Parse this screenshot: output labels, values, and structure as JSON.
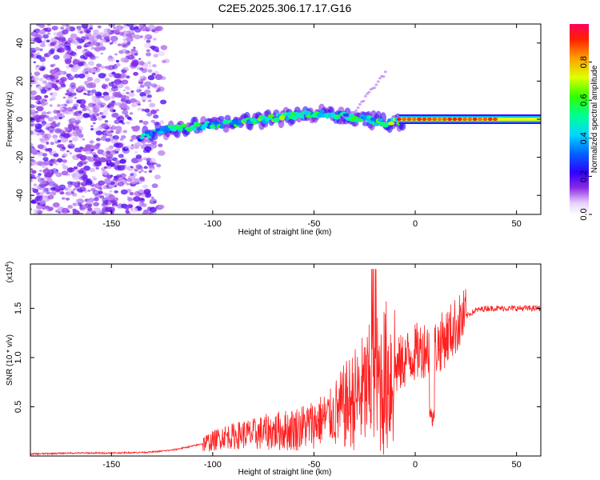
{
  "chart_data": [
    {
      "type": "heatmap",
      "title": "C2E5.2025.306.17.17.G16",
      "xlabel": "Height of straight line (km)",
      "ylabel": "Frequency (Hz)",
      "xlim": [
        -190,
        62
      ],
      "ylim": [
        -50,
        50
      ],
      "x_ticks": [
        -150,
        -100,
        -50,
        0,
        50
      ],
      "y_ticks": [
        -40,
        -20,
        0,
        20,
        40
      ],
      "colorbar": {
        "label": "Normalized spectral amplitude",
        "range": [
          0,
          1
        ],
        "ticks": [
          "0.0",
          "0.2",
          "0.4",
          "0.6",
          "0.8"
        ]
      },
      "description_points": [
        {
          "x": -135,
          "freq": -9,
          "amp": 0.45
        },
        {
          "x": -120,
          "freq": -5,
          "amp": 0.5
        },
        {
          "x": -100,
          "freq": -3,
          "amp": 0.55
        },
        {
          "x": -80,
          "freq": -1,
          "amp": 0.6
        },
        {
          "x": -60,
          "freq": 2,
          "amp": 0.6
        },
        {
          "x": -45,
          "freq": 3,
          "amp": 0.5
        },
        {
          "x": -30,
          "freq": 1,
          "amp": 0.55
        },
        {
          "x": -15,
          "freq": -2,
          "amp": 0.6
        },
        {
          "x": 0,
          "freq": 0,
          "amp": 0.7
        },
        {
          "x": 20,
          "freq": 0,
          "amp": 0.8
        },
        {
          "x": 40,
          "freq": 0,
          "amp": 0.75
        },
        {
          "x": 60,
          "freq": 0,
          "amp": 0.7
        }
      ]
    },
    {
      "type": "line",
      "title": "",
      "xlabel": "Height of straight line (km)",
      "ylabel": "SNR (10 * v/v)",
      "y_scale_label": "(x10",
      "y_scale_exp": "4",
      "xlim": [
        -190,
        62
      ],
      "ylim": [
        0,
        1.95
      ],
      "x_ticks": [
        -150,
        -100,
        -50,
        0,
        50
      ],
      "y_ticks": [
        "0.5",
        "1.0",
        "1.5"
      ],
      "color": "#ff2020",
      "series": [
        {
          "name": "SNR",
          "x": [
            -190,
            -170,
            -150,
            -130,
            -120,
            -110,
            -100,
            -95,
            -90,
            -85,
            -80,
            -75,
            -70,
            -65,
            -60,
            -55,
            -50,
            -45,
            -40,
            -35,
            -30,
            -25,
            -20,
            -15,
            -10,
            -5,
            0,
            5,
            10,
            15,
            20,
            25,
            30,
            35,
            40,
            45,
            50,
            55,
            60
          ],
          "y": [
            0.02,
            0.03,
            0.03,
            0.04,
            0.06,
            0.1,
            0.15,
            0.2,
            0.2,
            0.22,
            0.22,
            0.24,
            0.25,
            0.26,
            0.27,
            0.3,
            0.33,
            0.38,
            0.42,
            0.5,
            0.58,
            0.65,
            0.72,
            0.78,
            0.88,
            0.98,
            1.05,
            1.1,
            1.1,
            1.2,
            1.32,
            1.42,
            1.48,
            1.5,
            1.5,
            1.5,
            1.5,
            1.5,
            1.5
          ]
        }
      ]
    }
  ]
}
